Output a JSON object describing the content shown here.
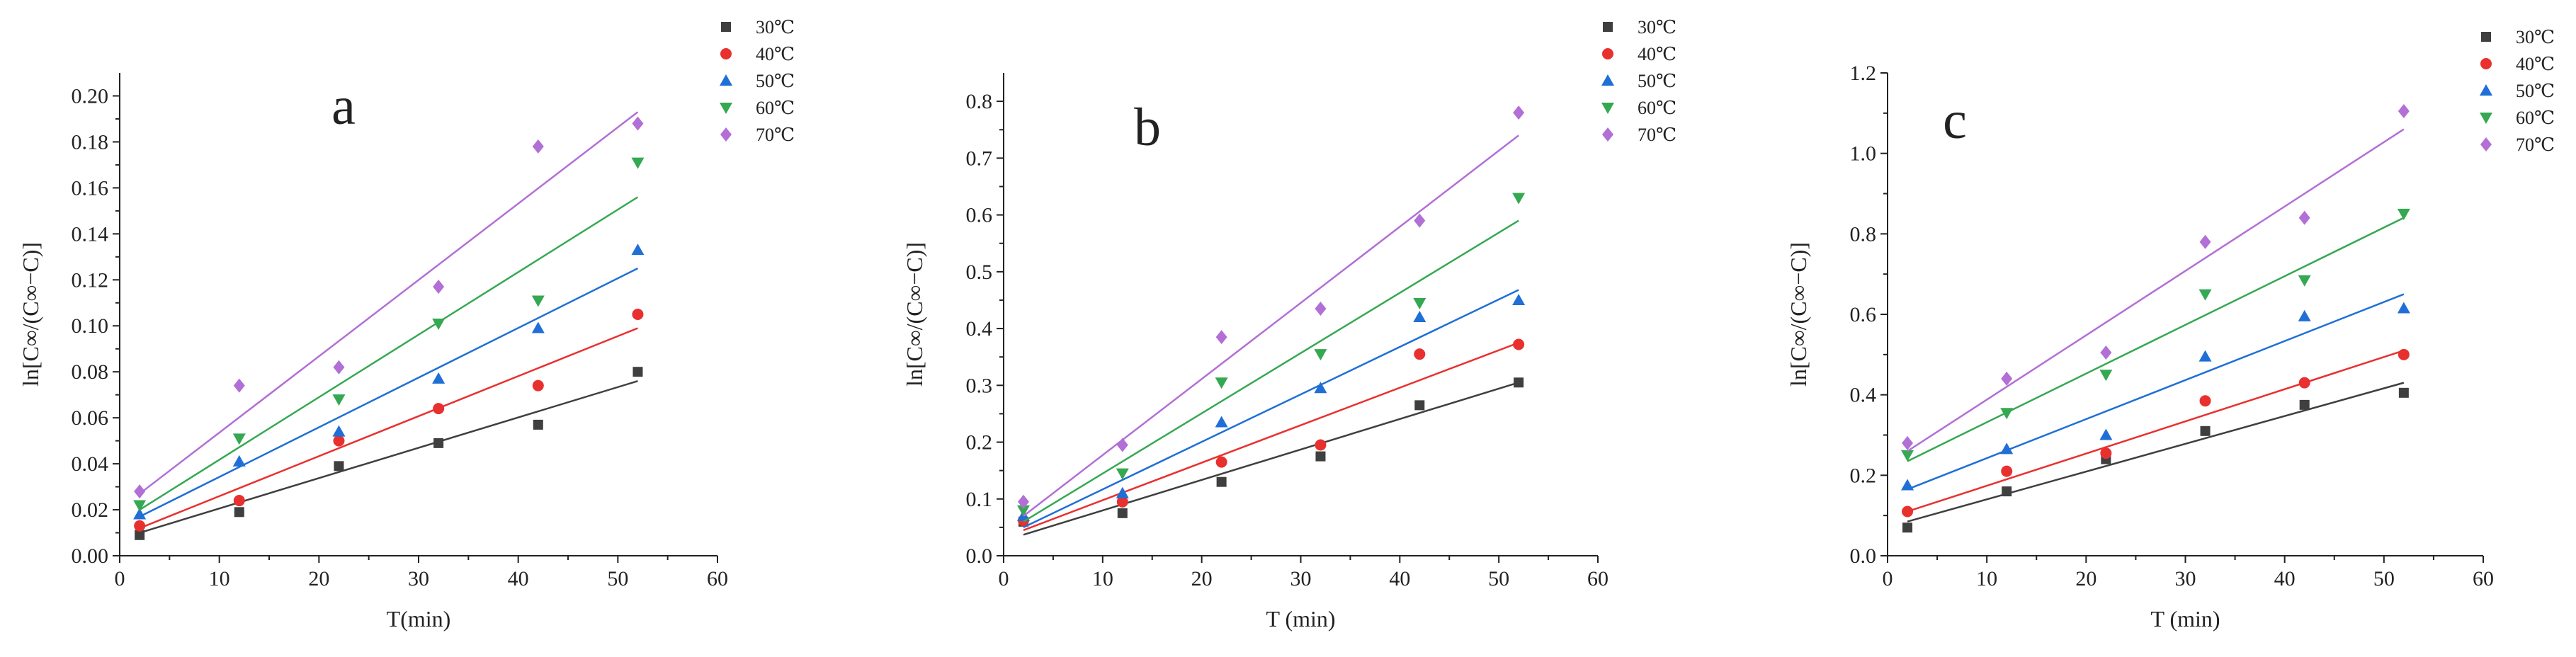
{
  "colors": {
    "axis": "#222222",
    "series": [
      "#3f3f3f",
      "#e8312f",
      "#1f6fd6",
      "#35a852",
      "#b26fd6"
    ]
  },
  "chart_data": [
    {
      "type": "scatter",
      "panel_label": "a",
      "xlabel": "T(min)",
      "ylabel": "ln[C∞/(C∞−C)]",
      "xlim": [
        0,
        60
      ],
      "ylim": [
        0,
        0.21
      ],
      "xticks": [
        "0",
        "10",
        "20",
        "30",
        "40",
        "50",
        "60"
      ],
      "yticks": [
        "0.00",
        "0.02",
        "0.04",
        "0.06",
        "0.08",
        "0.10",
        "0.12",
        "0.14",
        "0.16",
        "0.18",
        "0.20"
      ],
      "x": [
        2,
        12,
        22,
        32,
        42,
        52
      ],
      "series": [
        {
          "name": "30℃",
          "marker": "square",
          "values": [
            0.009,
            0.019,
            0.039,
            0.049,
            0.057,
            0.08
          ],
          "fit": [
            0.01,
            0.076
          ]
        },
        {
          "name": "40℃",
          "marker": "circle",
          "values": [
            0.013,
            0.024,
            0.05,
            0.064,
            0.074,
            0.105
          ],
          "fit": [
            0.012,
            0.099
          ]
        },
        {
          "name": "50℃",
          "marker": "triangle-up",
          "values": [
            0.018,
            0.041,
            0.054,
            0.077,
            0.099,
            0.133
          ],
          "fit": [
            0.017,
            0.125
          ]
        },
        {
          "name": "60℃",
          "marker": "triangle-down",
          "values": [
            0.022,
            0.051,
            0.068,
            0.101,
            0.111,
            0.171
          ],
          "fit": [
            0.02,
            0.156
          ]
        },
        {
          "name": "70℃",
          "marker": "diamond",
          "values": [
            0.028,
            0.074,
            0.082,
            0.117,
            0.178,
            0.188
          ],
          "fit": [
            0.027,
            0.193
          ]
        }
      ]
    },
    {
      "type": "scatter",
      "panel_label": "b",
      "xlabel": "T (min)",
      "ylabel": "ln[C∞/(C∞−C)]",
      "xlim": [
        0,
        60
      ],
      "ylim": [
        0,
        0.85
      ],
      "xticks": [
        "0",
        "10",
        "20",
        "30",
        "40",
        "50",
        "60"
      ],
      "yticks": [
        "0.0",
        "0.1",
        "0.2",
        "0.3",
        "0.4",
        "0.5",
        "0.6",
        "0.7",
        "0.8"
      ],
      "x": [
        2,
        12,
        22,
        32,
        42,
        52
      ],
      "series": [
        {
          "name": "30℃",
          "marker": "square",
          "values": [
            0.06,
            0.075,
            0.13,
            0.175,
            0.265,
            0.305
          ],
          "fit": [
            0.037,
            0.305
          ]
        },
        {
          "name": "40℃",
          "marker": "circle",
          "values": [
            0.062,
            0.095,
            0.165,
            0.195,
            0.355,
            0.372
          ],
          "fit": [
            0.045,
            0.375
          ]
        },
        {
          "name": "50℃",
          "marker": "triangle-up",
          "values": [
            0.07,
            0.11,
            0.235,
            0.295,
            0.42,
            0.45
          ],
          "fit": [
            0.05,
            0.468
          ]
        },
        {
          "name": "60℃",
          "marker": "triangle-down",
          "values": [
            0.08,
            0.145,
            0.305,
            0.355,
            0.445,
            0.63
          ],
          "fit": [
            0.06,
            0.59
          ]
        },
        {
          "name": "70℃",
          "marker": "diamond",
          "values": [
            0.095,
            0.195,
            0.385,
            0.435,
            0.59,
            0.78
          ],
          "fit": [
            0.07,
            0.74
          ]
        }
      ]
    },
    {
      "type": "scatter",
      "panel_label": "c",
      "xlabel": "T (min)",
      "ylabel": "ln[C∞/(C∞−C)]",
      "xlim": [
        0,
        60
      ],
      "ylim": [
        0,
        1.2
      ],
      "xticks": [
        "0",
        "10",
        "20",
        "30",
        "40",
        "50",
        "60"
      ],
      "yticks": [
        "0.0",
        "0.2",
        "0.4",
        "0.6",
        "0.8",
        "1.0",
        "1.2"
      ],
      "x": [
        2,
        12,
        22,
        32,
        42,
        52
      ],
      "series": [
        {
          "name": "30℃",
          "marker": "square",
          "values": [
            0.07,
            0.16,
            0.24,
            0.31,
            0.375,
            0.405
          ],
          "fit": [
            0.085,
            0.43
          ]
        },
        {
          "name": "40℃",
          "marker": "circle",
          "values": [
            0.11,
            0.21,
            0.255,
            0.385,
            0.43,
            0.5
          ],
          "fit": [
            0.11,
            0.51
          ]
        },
        {
          "name": "50℃",
          "marker": "triangle-up",
          "values": [
            0.175,
            0.265,
            0.3,
            0.495,
            0.595,
            0.615
          ],
          "fit": [
            0.165,
            0.65
          ]
        },
        {
          "name": "60℃",
          "marker": "triangle-down",
          "values": [
            0.25,
            0.355,
            0.45,
            0.65,
            0.685,
            0.85
          ],
          "fit": [
            0.235,
            0.84
          ]
        },
        {
          "name": "70℃",
          "marker": "diamond",
          "values": [
            0.28,
            0.44,
            0.505,
            0.78,
            0.84,
            1.105
          ],
          "fit": [
            0.26,
            1.06
          ]
        }
      ]
    }
  ]
}
